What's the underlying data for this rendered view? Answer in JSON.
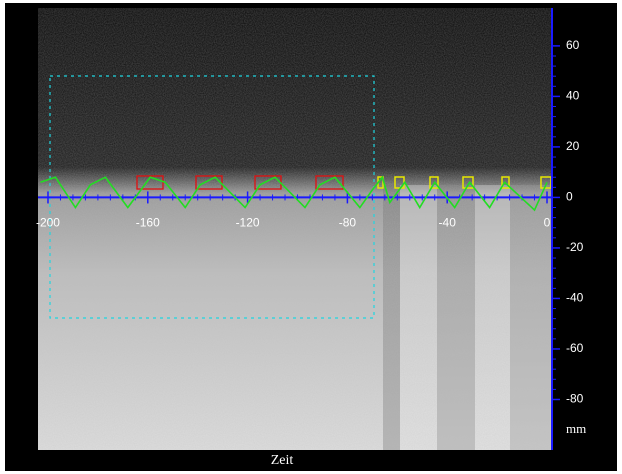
{
  "chart_data": {
    "type": "line",
    "xlabel": "Zeit",
    "ylabel": "mm",
    "xlim": [
      -204,
      2
    ],
    "ylim": [
      -100,
      75
    ],
    "xticks": [
      -200,
      -160,
      -120,
      -80,
      -40,
      0
    ],
    "yticks": [
      60,
      40,
      20,
      0,
      -20,
      -40,
      -60,
      -80
    ],
    "axis_color": "#1a1aff",
    "series": [
      {
        "color": "#22dd22",
        "x": [
          -203,
          -197,
          -189,
          -183,
          -177,
          -168,
          -159,
          -153,
          -145,
          -139,
          -133,
          -121,
          -115,
          -109,
          -97,
          -91,
          -85,
          -75,
          -70,
          -66,
          -63,
          -57,
          -51,
          -45,
          -37,
          -31,
          -23,
          -17,
          -5,
          0
        ],
        "values": [
          6,
          8,
          -4,
          5,
          8,
          -4,
          8,
          6,
          -4,
          5,
          8,
          -4,
          5,
          8,
          -4,
          5,
          8,
          -4,
          3,
          8,
          -2,
          6,
          -4,
          6,
          -4,
          6,
          -4,
          6,
          -5,
          6
        ]
      }
    ]
  }
}
